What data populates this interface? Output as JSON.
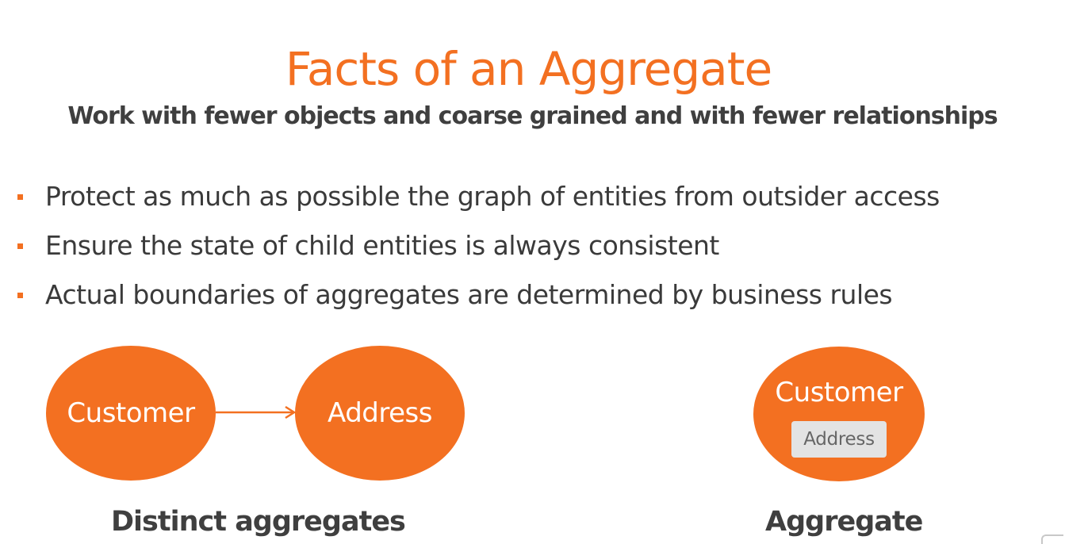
{
  "colors": {
    "accent": "#f37021",
    "title": "#f37021",
    "text": "#3a3a3a",
    "heading_dark": "#3f3f3f",
    "bullet_marker": "#f37021",
    "inner_box_bg": "#e3e3e3",
    "inner_box_text": "#666666"
  },
  "slide": {
    "title": "Facts of an Aggregate",
    "subtitle": "Work with fewer objects and coarse grained and with fewer relationships",
    "bullets": [
      "Protect as much as possible the graph of entities from outsider access",
      "Ensure the state of child entities is always consistent",
      "Actual boundaries of aggregates are determined by business rules"
    ]
  },
  "diagram_left": {
    "node_from": "Customer",
    "node_to": "Address",
    "caption": "Distinct aggregates"
  },
  "diagram_right": {
    "node": "Customer",
    "inner": "Address",
    "caption": "Aggregate"
  },
  "icons": {
    "bullet": "square-bullet-icon",
    "arrow": "arrow-right-icon"
  }
}
